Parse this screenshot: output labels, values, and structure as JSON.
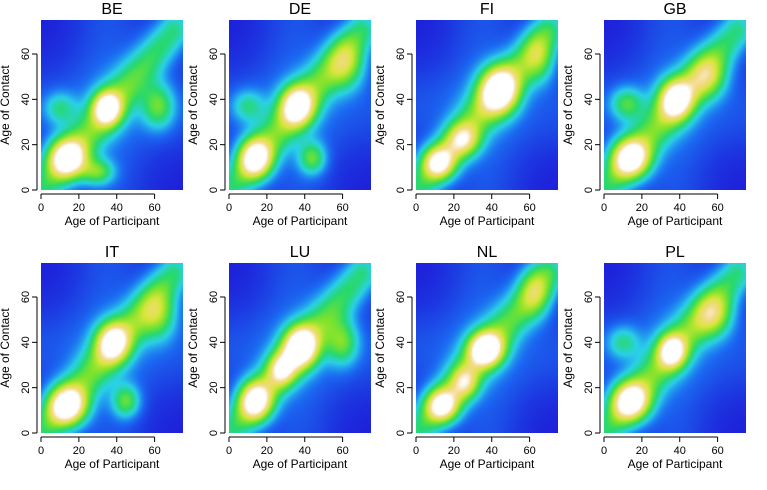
{
  "chart_data": {
    "type": "heatmap",
    "layout": {
      "rows": 2,
      "cols": 4
    },
    "xlabel": "Age of Participant",
    "ylabel": "Age of Contact",
    "xlim": [
      0,
      75
    ],
    "ylim": [
      0,
      75
    ],
    "xticks": [
      0,
      20,
      40,
      60
    ],
    "yticks": [
      0,
      20,
      40,
      60
    ],
    "colormap": [
      "#1d1fd9",
      "#1b6cf2",
      "#2ad1e8",
      "#27d96b",
      "#7ee32c",
      "#d8e63a",
      "#f4d98a",
      "#ffffff"
    ],
    "panels": [
      {
        "title": "BE",
        "blobs": [
          {
            "x": 14,
            "y": 14,
            "sx": 7,
            "sy": 6,
            "w": 1.0
          },
          {
            "x": 35,
            "y": 36,
            "sx": 5,
            "sy": 5,
            "w": 0.9
          },
          {
            "x": 30,
            "y": 8,
            "sx": 6,
            "sy": 4,
            "w": 0.45
          },
          {
            "x": 62,
            "y": 37,
            "sx": 6,
            "sy": 7,
            "w": 0.45
          },
          {
            "x": 10,
            "y": 36,
            "sx": 6,
            "sy": 5,
            "w": 0.3
          }
        ]
      },
      {
        "title": "DE",
        "blobs": [
          {
            "x": 14,
            "y": 14,
            "sx": 6,
            "sy": 6,
            "w": 0.95
          },
          {
            "x": 36,
            "y": 37,
            "sx": 6,
            "sy": 6,
            "w": 0.85
          },
          {
            "x": 44,
            "y": 14,
            "sx": 5,
            "sy": 5,
            "w": 0.45
          },
          {
            "x": 62,
            "y": 55,
            "sx": 7,
            "sy": 8,
            "w": 0.45
          },
          {
            "x": 10,
            "y": 37,
            "sx": 6,
            "sy": 5,
            "w": 0.3
          }
        ]
      },
      {
        "title": "FI",
        "blobs": [
          {
            "x": 12,
            "y": 12,
            "sx": 6,
            "sy": 5,
            "w": 0.8
          },
          {
            "x": 44,
            "y": 44,
            "sx": 7,
            "sy": 7,
            "w": 1.0
          },
          {
            "x": 25,
            "y": 22,
            "sx": 6,
            "sy": 5,
            "w": 0.55
          },
          {
            "x": 65,
            "y": 58,
            "sx": 6,
            "sy": 8,
            "w": 0.4
          }
        ]
      },
      {
        "title": "GB",
        "blobs": [
          {
            "x": 14,
            "y": 14,
            "sx": 7,
            "sy": 6,
            "w": 0.95
          },
          {
            "x": 38,
            "y": 40,
            "sx": 6,
            "sy": 6,
            "w": 0.85
          },
          {
            "x": 12,
            "y": 38,
            "sx": 6,
            "sy": 5,
            "w": 0.4
          },
          {
            "x": 55,
            "y": 50,
            "sx": 7,
            "sy": 7,
            "w": 0.45
          }
        ]
      },
      {
        "title": "IT",
        "blobs": [
          {
            "x": 14,
            "y": 12,
            "sx": 7,
            "sy": 6,
            "w": 1.0
          },
          {
            "x": 38,
            "y": 40,
            "sx": 6,
            "sy": 6,
            "w": 0.8
          },
          {
            "x": 45,
            "y": 14,
            "sx": 5,
            "sy": 5,
            "w": 0.45
          },
          {
            "x": 62,
            "y": 52,
            "sx": 7,
            "sy": 8,
            "w": 0.45
          }
        ]
      },
      {
        "title": "LU",
        "blobs": [
          {
            "x": 14,
            "y": 14,
            "sx": 6,
            "sy": 6,
            "w": 0.9
          },
          {
            "x": 38,
            "y": 38,
            "sx": 6,
            "sy": 6,
            "w": 1.0
          },
          {
            "x": 28,
            "y": 28,
            "sx": 5,
            "sy": 5,
            "w": 0.6
          },
          {
            "x": 60,
            "y": 40,
            "sx": 6,
            "sy": 7,
            "w": 0.45
          }
        ]
      },
      {
        "title": "NL",
        "blobs": [
          {
            "x": 14,
            "y": 12,
            "sx": 6,
            "sy": 5,
            "w": 0.85
          },
          {
            "x": 37,
            "y": 37,
            "sx": 6,
            "sy": 5,
            "w": 1.0
          },
          {
            "x": 26,
            "y": 22,
            "sx": 5,
            "sy": 5,
            "w": 0.5
          },
          {
            "x": 63,
            "y": 62,
            "sx": 6,
            "sy": 8,
            "w": 0.4
          }
        ]
      },
      {
        "title": "PL",
        "blobs": [
          {
            "x": 14,
            "y": 14,
            "sx": 7,
            "sy": 6,
            "w": 0.95
          },
          {
            "x": 36,
            "y": 36,
            "sx": 5,
            "sy": 5,
            "w": 0.8
          },
          {
            "x": 10,
            "y": 40,
            "sx": 6,
            "sy": 5,
            "w": 0.3
          },
          {
            "x": 58,
            "y": 52,
            "sx": 7,
            "sy": 7,
            "w": 0.5
          }
        ]
      }
    ]
  }
}
